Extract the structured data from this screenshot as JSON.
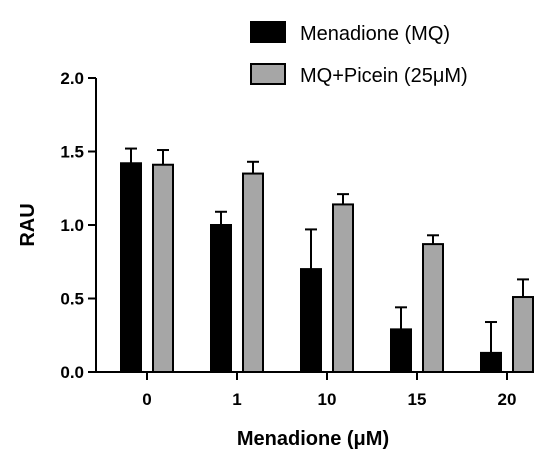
{
  "chart_data": {
    "type": "bar",
    "xlabel": "Menadione (μM)",
    "ylabel": "RAU",
    "ylim": [
      0,
      2.0
    ],
    "yticks": [
      "0.0",
      "0.5",
      "1.0",
      "1.5",
      "2.0"
    ],
    "ytick_values": [
      0,
      0.5,
      1.0,
      1.5,
      2.0
    ],
    "categories": [
      "0",
      "1",
      "10",
      "15",
      "20"
    ],
    "series": [
      {
        "name": "Menadione (MQ)",
        "color": "#000000",
        "values": [
          1.42,
          1.0,
          0.7,
          0.29,
          0.13
        ],
        "errors": [
          0.1,
          0.09,
          0.27,
          0.15,
          0.21
        ]
      },
      {
        "name": "MQ+Picein (25μM)",
        "color": "#a6a6a6",
        "values": [
          1.41,
          1.35,
          1.14,
          0.87,
          0.51
        ],
        "errors": [
          0.1,
          0.08,
          0.07,
          0.06,
          0.12
        ]
      }
    ],
    "legend_position": "top-right",
    "grid": false
  }
}
